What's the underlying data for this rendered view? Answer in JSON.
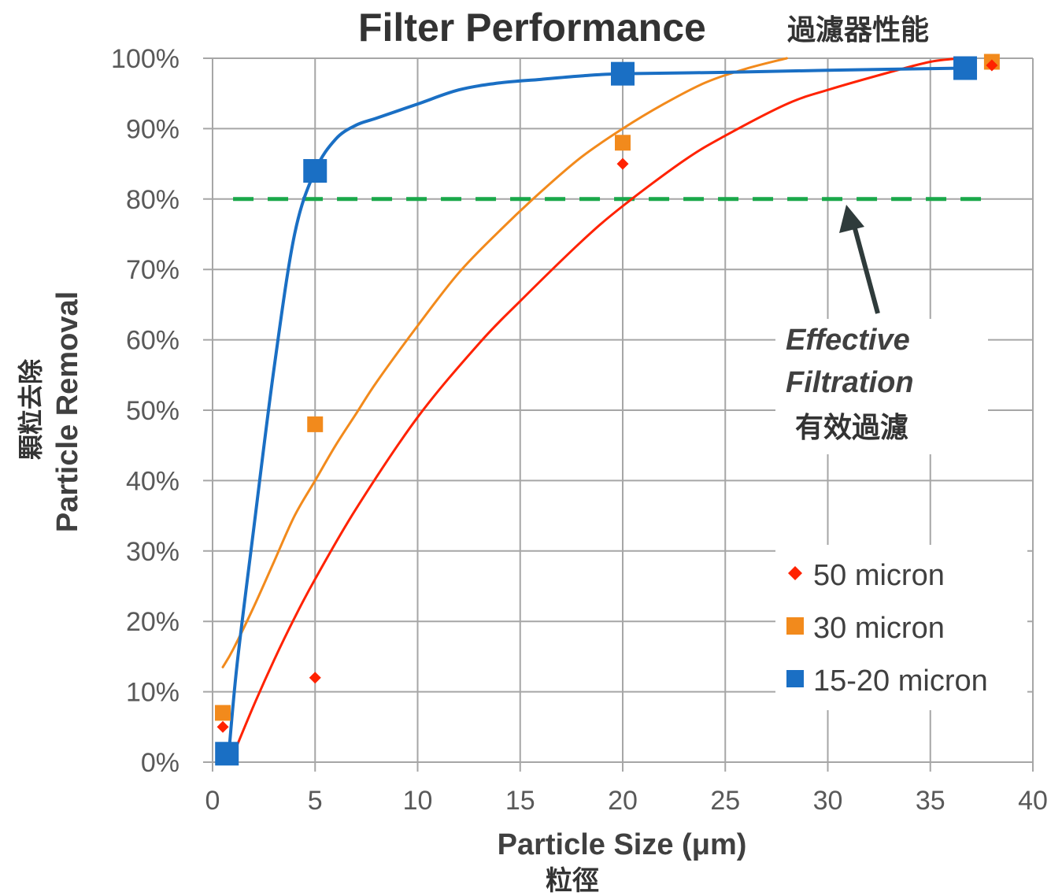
{
  "chart_data": {
    "type": "scatter",
    "title": "Filter Performance",
    "title_cjk": "過濾器性能",
    "xlabel": "Particle Size (μm)",
    "xlabel_cjk": "粒徑",
    "ylabel": "Particle Removal",
    "ylabel_cjk": "顆粒去除",
    "xlim": [
      0,
      40
    ],
    "ylim": [
      0,
      100
    ],
    "x_ticks": [
      "0",
      "5",
      "10",
      "15",
      "20",
      "25",
      "30",
      "35",
      "40"
    ],
    "y_ticks": [
      "0%",
      "10%",
      "20%",
      "30%",
      "40%",
      "50%",
      "60%",
      "70%",
      "80%",
      "90%",
      "100%"
    ],
    "grid": true,
    "legend_position": "bottom-right",
    "series": [
      {
        "name": "50 micron",
        "color": "#ff2200",
        "marker": "diamond",
        "points": [
          [
            0.5,
            5
          ],
          [
            5,
            12
          ],
          [
            20,
            85
          ],
          [
            38,
            99
          ]
        ],
        "trendline": [
          [
            1,
            1
          ],
          [
            2,
            8
          ],
          [
            3,
            14.5
          ],
          [
            4,
            20.5
          ],
          [
            5,
            26
          ],
          [
            7,
            36
          ],
          [
            10,
            49
          ],
          [
            13,
            59.5
          ],
          [
            15,
            65.5
          ],
          [
            18,
            74
          ],
          [
            20,
            79
          ],
          [
            23,
            85.5
          ],
          [
            25,
            89
          ],
          [
            28,
            93.5
          ],
          [
            30,
            95.5
          ],
          [
            33,
            98
          ],
          [
            35,
            99.5
          ],
          [
            36.5,
            100
          ]
        ]
      },
      {
        "name": "30 micron",
        "color": "#f28a1c",
        "marker": "square",
        "points": [
          [
            0.5,
            7
          ],
          [
            5,
            48
          ],
          [
            20,
            88
          ],
          [
            38,
            99.5
          ]
        ],
        "trendline": [
          [
            0.5,
            13.5
          ],
          [
            1,
            16
          ],
          [
            2,
            22
          ],
          [
            3,
            28.5
          ],
          [
            4,
            35
          ],
          [
            5,
            40
          ],
          [
            6,
            45
          ],
          [
            7,
            49.5
          ],
          [
            8,
            54
          ],
          [
            10,
            62
          ],
          [
            12,
            69.5
          ],
          [
            14,
            75.5
          ],
          [
            16,
            81
          ],
          [
            18,
            86
          ],
          [
            20,
            90
          ],
          [
            22,
            93.5
          ],
          [
            24,
            96.5
          ],
          [
            26,
            98.5
          ],
          [
            28,
            100
          ]
        ]
      },
      {
        "name": "15-20 micron",
        "color": "#1a6fc4",
        "marker": "square",
        "points": [
          [
            0.7,
            1.2
          ],
          [
            5,
            84
          ],
          [
            20,
            97.8
          ],
          [
            36.7,
            98.6
          ]
        ],
        "trendline": [
          [
            0.8,
            1.5
          ],
          [
            1.2,
            14
          ],
          [
            2,
            33
          ],
          [
            3,
            56
          ],
          [
            4,
            75
          ],
          [
            5,
            84
          ],
          [
            6,
            88.5
          ],
          [
            7,
            90.5
          ],
          [
            8,
            91.5
          ],
          [
            10,
            93.5
          ],
          [
            12,
            95.5
          ],
          [
            14,
            96.5
          ],
          [
            16,
            97
          ],
          [
            18,
            97.5
          ],
          [
            20,
            97.8
          ],
          [
            25,
            98
          ],
          [
            30,
            98.3
          ],
          [
            36.7,
            98.6
          ]
        ]
      }
    ],
    "threshold": {
      "value": 80,
      "color": "#1aa84a",
      "style": "dashed",
      "x_range": [
        1,
        38
      ]
    },
    "annotation": {
      "line1": "Effective",
      "line2": "Filtration",
      "line3": "有效過濾",
      "arrow_color": "#2f3b3b"
    }
  }
}
